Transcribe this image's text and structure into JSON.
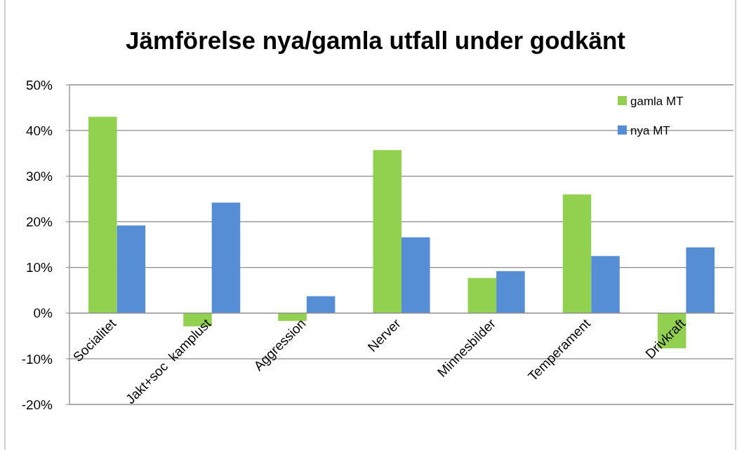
{
  "chart_data": {
    "type": "bar",
    "title": "Jämförelse nya/gamla utfall under godkänt",
    "categories": [
      "Socialitet",
      "Jakt+soc  kamplust",
      "Aggression",
      "Nerver",
      "Minnesbilder",
      "Temperament",
      "Drivkraft"
    ],
    "series": [
      {
        "name": "gamla MT",
        "color": "#92d050",
        "values": [
          43,
          -2.9,
          -1.7,
          35.7,
          7.7,
          26,
          -7.7
        ]
      },
      {
        "name": "nya MT",
        "color": "#558ed5",
        "values": [
          19.2,
          24.2,
          3.7,
          16.6,
          9.2,
          12.5,
          14.4
        ]
      }
    ],
    "ylim": [
      -20,
      50
    ],
    "yticks": [
      {
        "value": -20,
        "label": "-20%"
      },
      {
        "value": -10,
        "label": "-10%"
      },
      {
        "value": 0,
        "label": "0%"
      },
      {
        "value": 10,
        "label": "10%"
      },
      {
        "value": 20,
        "label": "20%"
      },
      {
        "value": 30,
        "label": "30%"
      },
      {
        "value": 40,
        "label": "40%"
      },
      {
        "value": 50,
        "label": "50%"
      }
    ],
    "grid": "y",
    "legend": "top right"
  }
}
